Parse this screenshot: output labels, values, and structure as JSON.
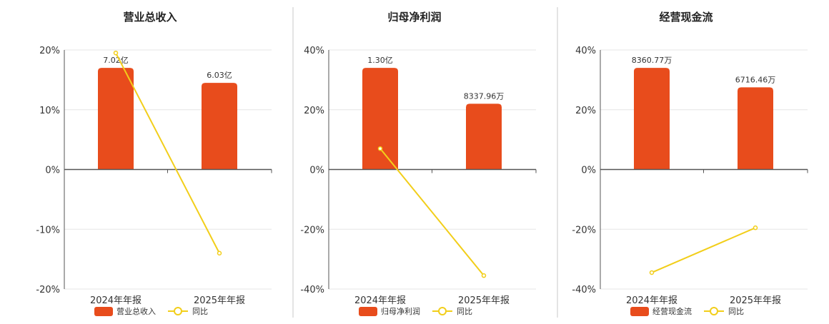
{
  "colors": {
    "bar": "#E84C1C",
    "line": "#F2CE1A",
    "grid": "#e6e6e6",
    "axis": "#555555",
    "divider": "#c8c8c8"
  },
  "chart_data": [
    {
      "type": "bar",
      "title": "营业总收入",
      "categories": [
        "2024年年报",
        "2025年年报"
      ],
      "yticks": [
        "20%",
        "10%",
        "0%",
        "-10%",
        "-20%"
      ],
      "ylim": [
        -20,
        20
      ],
      "series": [
        {
          "name": "营业总收入",
          "kind": "bar",
          "values": [
            17,
            14.5
          ],
          "labels": [
            "7.02亿",
            "6.03亿"
          ]
        },
        {
          "name": "同比",
          "kind": "line",
          "values": [
            19.5,
            -14
          ]
        }
      ],
      "legend": "bottom"
    },
    {
      "type": "bar",
      "title": "归母净利润",
      "categories": [
        "2024年年报",
        "2025年年报"
      ],
      "yticks": [
        "40%",
        "20%",
        "0%",
        "-20%",
        "-40%"
      ],
      "ylim": [
        -40,
        40
      ],
      "series": [
        {
          "name": "归母净利润",
          "kind": "bar",
          "values": [
            34,
            22
          ],
          "labels": [
            "1.30亿",
            "8337.96万"
          ]
        },
        {
          "name": "同比",
          "kind": "line",
          "values": [
            7,
            -35.5
          ]
        }
      ],
      "legend": "bottom"
    },
    {
      "type": "bar",
      "title": "经营现金流",
      "categories": [
        "2024年年报",
        "2025年年报"
      ],
      "yticks": [
        "40%",
        "20%",
        "0%",
        "-20%",
        "-40%"
      ],
      "ylim": [
        -40,
        40
      ],
      "series": [
        {
          "name": "经营现金流",
          "kind": "bar",
          "values": [
            34,
            27.5
          ],
          "labels": [
            "8360.77万",
            "6716.46万"
          ]
        },
        {
          "name": "同比",
          "kind": "line",
          "values": [
            -34.5,
            -19.5
          ]
        }
      ],
      "legend": "bottom"
    }
  ]
}
